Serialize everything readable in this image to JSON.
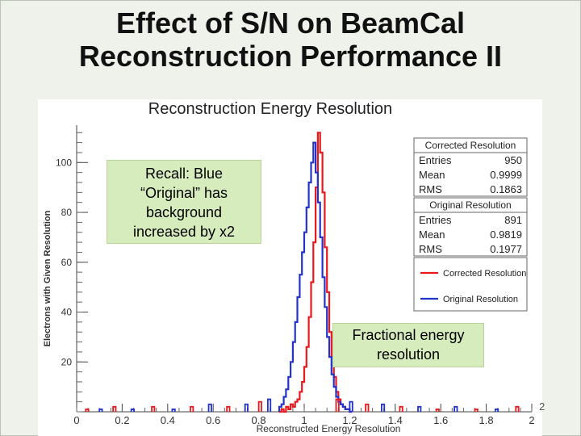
{
  "slide": {
    "title_line1": "Effect of S/N on BeamCal",
    "title_line2": "Reconstruction Performance II",
    "page_number": "2"
  },
  "callouts": {
    "recall": [
      "Recall: Blue",
      "“Original” has",
      "background",
      "increased by x2"
    ],
    "fractional": [
      "Fractional energy",
      "resolution"
    ]
  },
  "colors": {
    "corrected": "#e8181c",
    "original": "#2233cc",
    "callout_bg": "#d7ecbd"
  },
  "chart_data": {
    "type": "histogram",
    "title": "Reconstruction Energy Resolution",
    "xlabel": "Reconstructed Energy Resolution",
    "ylabel": "Electrons with Given Resolution",
    "xlim": [
      0,
      2
    ],
    "ylim": [
      0,
      115
    ],
    "x_ticks": [
      "0",
      "0.2",
      "0.4",
      "0.6",
      "0.8",
      "1",
      "1.2",
      "1.4",
      "1.6",
      "1.8",
      "2"
    ],
    "y_ticks": [
      "20",
      "40",
      "60",
      "80",
      "100"
    ],
    "legend": [
      "Corrected Resolution",
      "Original Resolution"
    ],
    "stats": [
      {
        "name": "Corrected Resolution",
        "rows": [
          {
            "label": "Entries",
            "value": "950"
          },
          {
            "label": "Mean",
            "value": "0.9999"
          },
          {
            "label": "RMS",
            "value": "0.1863"
          }
        ]
      },
      {
        "name": "Original Resolution",
        "rows": [
          {
            "label": "Entries",
            "value": "891"
          },
          {
            "label": "Mean",
            "value": "0.9819"
          },
          {
            "label": "RMS",
            "value": "0.1977"
          }
        ]
      }
    ],
    "series": [
      {
        "name": "Corrected Resolution",
        "bin_edges_start": 0.89,
        "bin_width": 0.01,
        "values": [
          0,
          1,
          0,
          2,
          1,
          3,
          2,
          4,
          5,
          8,
          12,
          18,
          26,
          38,
          52,
          68,
          90,
          112,
          104,
          88,
          66,
          48,
          32,
          22,
          14,
          8,
          5,
          3,
          2,
          1,
          1,
          0
        ]
      },
      {
        "name": "Original Resolution",
        "bin_edges_start": 0.89,
        "bin_width": 0.01,
        "values": [
          2,
          3,
          6,
          9,
          14,
          20,
          28,
          36,
          46,
          55,
          64,
          72,
          82,
          92,
          100,
          108,
          96,
          84,
          70,
          54,
          42,
          30,
          22,
          15,
          10,
          6,
          4,
          3,
          2,
          1,
          1,
          0
        ]
      }
    ]
  }
}
